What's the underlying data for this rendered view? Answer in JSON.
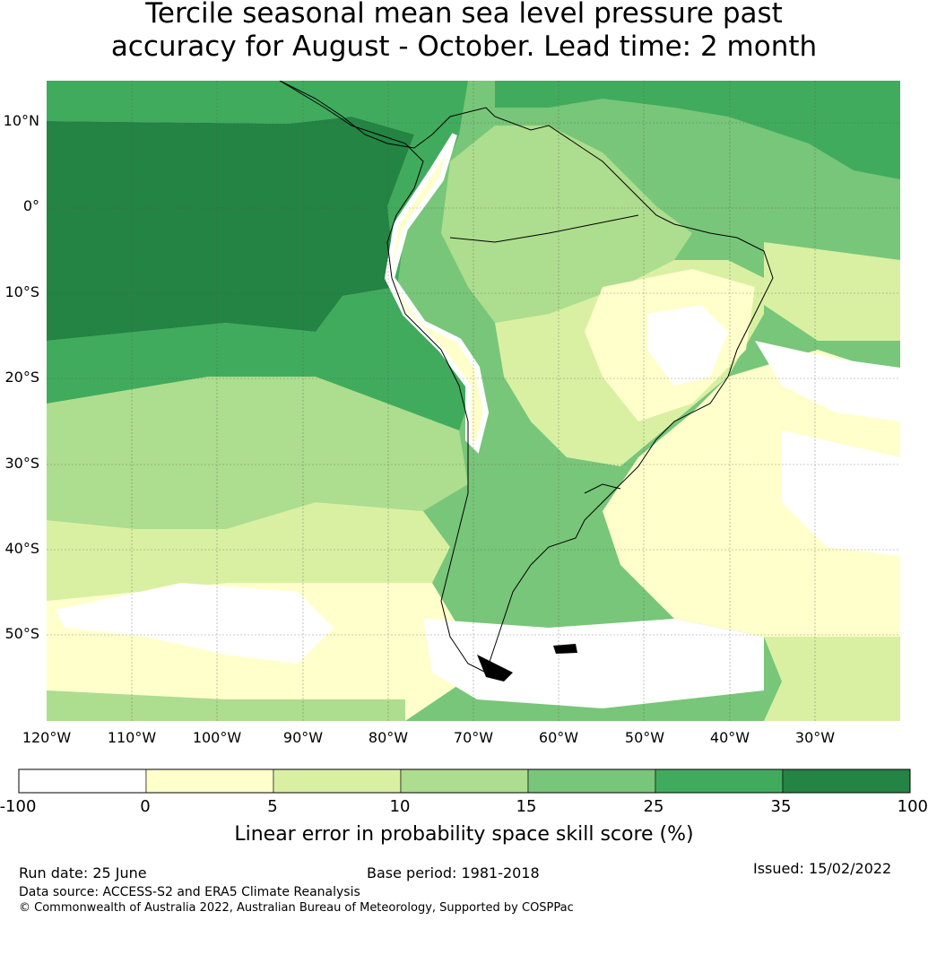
{
  "title_line1": "Tercile seasonal mean sea level pressure past",
  "title_line2": "accuracy for August - October. Lead time: 2 month",
  "lat_labels": [
    "10°N",
    "0°",
    "10°S",
    "20°S",
    "30°S",
    "40°S",
    "50°S"
  ],
  "lon_labels": [
    "120°W",
    "110°W",
    "100°W",
    "90°W",
    "80°W",
    "70°W",
    "60°W",
    "50°W",
    "40°W",
    "30°W"
  ],
  "colorbar": {
    "ticks": [
      "-100",
      "0",
      "5",
      "10",
      "15",
      "25",
      "35",
      "100"
    ],
    "colors": [
      "#ffffff",
      "#ffffcc",
      "#d9f0a3",
      "#addd8e",
      "#78c679",
      "#41ab5d",
      "#238443"
    ],
    "label": "Linear error in probability space skill score (%)"
  },
  "footer": {
    "run_date": "Run date: 25 June",
    "base_period": "Base period: 1981-2018",
    "issued": "Issued: 15/02/2022",
    "data_source": "Data source: ACCESS-S2 and ERA5 Climate Reanalysis",
    "copyright": "© Commonwealth of Australia 2022, Australian Bureau of Meteorology, Supported by COSPPac"
  }
}
